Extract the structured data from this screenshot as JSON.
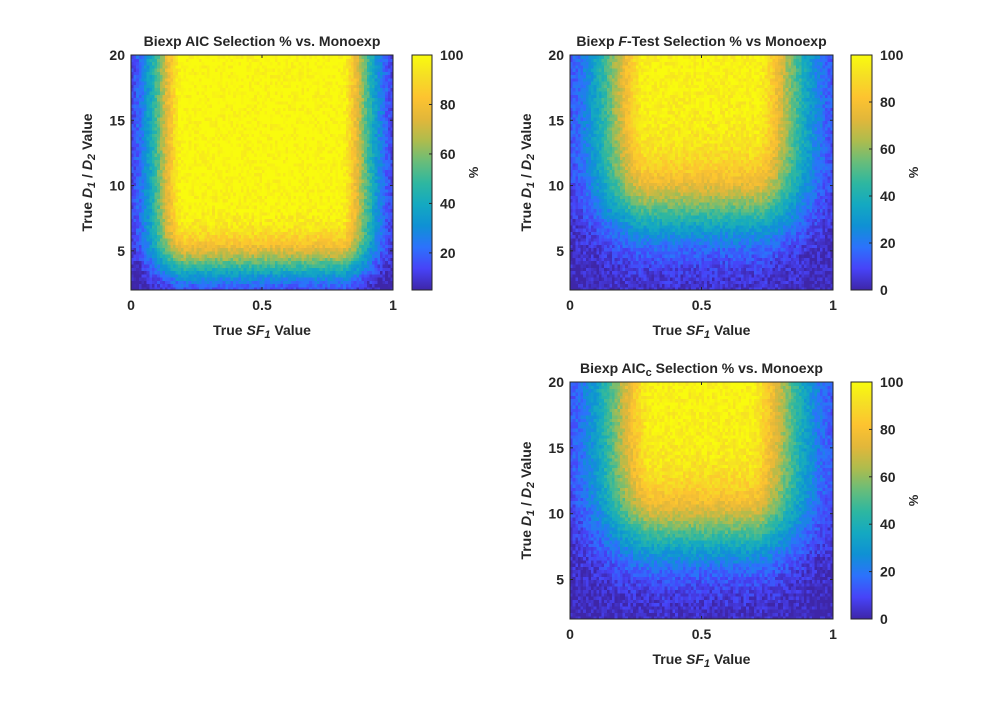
{
  "figure": {
    "background": "#ffffff",
    "colormap": "parula",
    "colormap_stops": [
      "#3e26a8",
      "#4743f8",
      "#2c72fc",
      "#0f91d4",
      "#14a9c1",
      "#2eb7a0",
      "#68bd7a",
      "#aebc4d",
      "#e2b73a",
      "#fdc330",
      "#f5de25",
      "#f9fb0e"
    ]
  },
  "chart_data": [
    {
      "type": "heatmap",
      "title_parts": [
        {
          "text": "Biexp AIC Selection % vs. Monoexp",
          "style": "normal"
        }
      ],
      "xlabel_parts": [
        {
          "text": "True ",
          "style": "normal"
        },
        {
          "text": "SF",
          "style": "italic"
        },
        {
          "text": "1",
          "style": "italic-sub"
        },
        {
          "text": " Value",
          "style": "normal"
        }
      ],
      "ylabel_parts": [
        {
          "text": "True ",
          "style": "normal"
        },
        {
          "text": "D",
          "style": "italic"
        },
        {
          "text": "1",
          "style": "italic-sub"
        },
        {
          "text": " / ",
          "style": "normal"
        },
        {
          "text": "D",
          "style": "italic"
        },
        {
          "text": "2",
          "style": "italic-sub"
        },
        {
          "text": " Value",
          "style": "normal"
        }
      ],
      "xlim": [
        0,
        1
      ],
      "ylim": [
        2,
        20
      ],
      "xticks": [
        0,
        0.5,
        1
      ],
      "xtick_labels": [
        "0",
        "0.5",
        "1"
      ],
      "yticks": [
        5,
        10,
        15,
        20
      ],
      "ytick_labels": [
        "5",
        "10",
        "15",
        "20"
      ],
      "grid": {
        "nx": 100,
        "ny": 72
      },
      "surface_model": {
        "peak": 100,
        "edge_steepness": 19,
        "ratio_center": 3.9,
        "ratio_width": 1.1,
        "noise": 3
      },
      "colorbar": {
        "label": "%",
        "clim": [
          5,
          100
        ],
        "ticks": [
          20,
          40,
          60,
          80,
          100
        ],
        "tick_labels": [
          "20",
          "40",
          "60",
          "80",
          "100"
        ]
      }
    },
    {
      "type": "heatmap",
      "title_parts": [
        {
          "text": "Biexp ",
          "style": "normal"
        },
        {
          "text": "F",
          "style": "italic"
        },
        {
          "text": "-Test Selection % vs Monoexp",
          "style": "normal"
        }
      ],
      "xlabel_parts": [
        {
          "text": "True ",
          "style": "normal"
        },
        {
          "text": "SF",
          "style": "italic"
        },
        {
          "text": "1",
          "style": "italic-sub"
        },
        {
          "text": " Value",
          "style": "normal"
        }
      ],
      "ylabel_parts": [
        {
          "text": "True ",
          "style": "normal"
        },
        {
          "text": "D",
          "style": "italic"
        },
        {
          "text": "1",
          "style": "italic-sub"
        },
        {
          "text": " / ",
          "style": "normal"
        },
        {
          "text": "D",
          "style": "italic"
        },
        {
          "text": "2",
          "style": "italic-sub"
        },
        {
          "text": " Value",
          "style": "normal"
        }
      ],
      "xlim": [
        0,
        1
      ],
      "ylim": [
        2,
        20
      ],
      "xticks": [
        0,
        0.5,
        1
      ],
      "xtick_labels": [
        "0",
        "0.5",
        "1"
      ],
      "yticks": [
        5,
        10,
        15,
        20
      ],
      "ytick_labels": [
        "5",
        "10",
        "15",
        "20"
      ],
      "grid": {
        "nx": 100,
        "ny": 72
      },
      "surface_model": {
        "peak": 98,
        "edge_steepness": 13,
        "ratio_center": 8.0,
        "ratio_width": 1.8,
        "noise": 3
      },
      "colorbar": {
        "label": "%",
        "clim": [
          0,
          100
        ],
        "ticks": [
          0,
          20,
          40,
          60,
          80,
          100
        ],
        "tick_labels": [
          "0",
          "20",
          "40",
          "60",
          "80",
          "100"
        ]
      }
    },
    {
      "type": "heatmap",
      "title_parts": [
        {
          "text": "Biexp AIC",
          "style": "normal"
        },
        {
          "text": "c",
          "style": "sub"
        },
        {
          "text": " Selection % vs. Monoexp",
          "style": "normal"
        }
      ],
      "xlabel_parts": [
        {
          "text": "True ",
          "style": "normal"
        },
        {
          "text": "SF",
          "style": "italic"
        },
        {
          "text": "1",
          "style": "italic-sub"
        },
        {
          "text": " Value",
          "style": "normal"
        }
      ],
      "ylabel_parts": [
        {
          "text": "True ",
          "style": "normal"
        },
        {
          "text": "D",
          "style": "italic"
        },
        {
          "text": "1",
          "style": "italic-sub"
        },
        {
          "text": " / ",
          "style": "normal"
        },
        {
          "text": "D",
          "style": "italic"
        },
        {
          "text": "2",
          "style": "italic-sub"
        },
        {
          "text": " Value",
          "style": "normal"
        }
      ],
      "xlim": [
        0,
        1
      ],
      "ylim": [
        2,
        20
      ],
      "xticks": [
        0,
        0.5,
        1
      ],
      "xtick_labels": [
        "0",
        "0.5",
        "1"
      ],
      "yticks": [
        5,
        10,
        15,
        20
      ],
      "ytick_labels": [
        "5",
        "10",
        "15",
        "20"
      ],
      "grid": {
        "nx": 100,
        "ny": 72
      },
      "surface_model": {
        "peak": 98,
        "edge_steepness": 12,
        "ratio_center": 8.5,
        "ratio_width": 1.8,
        "noise": 3
      },
      "colorbar": {
        "label": "%",
        "clim": [
          0,
          100
        ],
        "ticks": [
          0,
          20,
          40,
          60,
          80,
          100
        ],
        "tick_labels": [
          "0",
          "20",
          "40",
          "60",
          "80",
          "100"
        ]
      }
    }
  ]
}
